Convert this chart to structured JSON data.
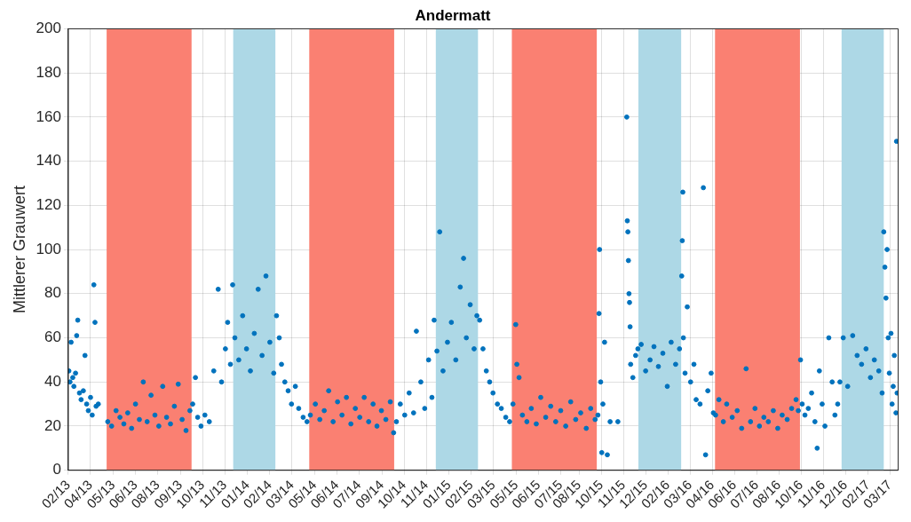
{
  "chart_data": {
    "type": "scatter",
    "title": "Andermatt",
    "ylabel": "Mittlerer Grauwert",
    "ylim": [
      0,
      200
    ],
    "yticks": [
      0,
      20,
      40,
      60,
      80,
      100,
      120,
      140,
      160,
      180,
      200
    ],
    "xlim": [
      "2013-02-21",
      "2017-03-27"
    ],
    "xticks": [
      {
        "value": "2013-02-21",
        "label": "02/13"
      },
      {
        "value": "2013-04-02",
        "label": "04/13"
      },
      {
        "value": "2013-05-13",
        "label": "05/13"
      },
      {
        "value": "2013-06-22",
        "label": "06/13"
      },
      {
        "value": "2013-08-01",
        "label": "08/13"
      },
      {
        "value": "2013-09-11",
        "label": "09/13"
      },
      {
        "value": "2013-10-21",
        "label": "10/13"
      },
      {
        "value": "2013-11-30",
        "label": "11/13"
      },
      {
        "value": "2014-01-10",
        "label": "01/14"
      },
      {
        "value": "2014-02-19",
        "label": "02/14"
      },
      {
        "value": "2014-03-31",
        "label": "03/14"
      },
      {
        "value": "2014-05-11",
        "label": "05/14"
      },
      {
        "value": "2014-06-20",
        "label": "06/14"
      },
      {
        "value": "2014-07-30",
        "label": "07/14"
      },
      {
        "value": "2014-09-09",
        "label": "09/14"
      },
      {
        "value": "2014-10-19",
        "label": "10/14"
      },
      {
        "value": "2014-11-28",
        "label": "11/14"
      },
      {
        "value": "2015-01-08",
        "label": "01/15"
      },
      {
        "value": "2015-02-17",
        "label": "02/15"
      },
      {
        "value": "2015-03-29",
        "label": "03/15"
      },
      {
        "value": "2015-05-09",
        "label": "05/15"
      },
      {
        "value": "2015-06-18",
        "label": "06/15"
      },
      {
        "value": "2015-07-28",
        "label": "07/15"
      },
      {
        "value": "2015-08-30",
        "label": "08/15"
      },
      {
        "value": "2015-10-09",
        "label": "10/15"
      },
      {
        "value": "2015-11-18",
        "label": "11/15"
      },
      {
        "value": "2015-12-28",
        "label": "12/15"
      },
      {
        "value": "2016-02-06",
        "label": "02/16"
      },
      {
        "value": "2016-03-17",
        "label": "03/16"
      },
      {
        "value": "2016-04-26",
        "label": "04/16"
      },
      {
        "value": "2016-06-05",
        "label": "06/16"
      },
      {
        "value": "2016-07-15",
        "label": "07/16"
      },
      {
        "value": "2016-08-24",
        "label": "08/16"
      },
      {
        "value": "2016-10-03",
        "label": "10/16"
      },
      {
        "value": "2016-11-12",
        "label": "11/16"
      },
      {
        "value": "2016-12-22",
        "label": "12/16"
      },
      {
        "value": "2017-02-01",
        "label": "02/17"
      },
      {
        "value": "2017-03-12",
        "label": "03/17"
      }
    ],
    "grid": true,
    "legend": false,
    "marker": "circle",
    "bands": [
      {
        "axis": "x",
        "from": "2013-05-01",
        "to": "2013-10-01",
        "color": "#fa8072"
      },
      {
        "axis": "x",
        "from": "2013-12-15",
        "to": "2014-03-01",
        "color": "#add8e6"
      },
      {
        "axis": "x",
        "from": "2014-05-01",
        "to": "2014-10-01",
        "color": "#fa8072"
      },
      {
        "axis": "x",
        "from": "2014-12-15",
        "to": "2015-03-01",
        "color": "#add8e6"
      },
      {
        "axis": "x",
        "from": "2015-05-01",
        "to": "2015-10-01",
        "color": "#fa8072"
      },
      {
        "axis": "x",
        "from": "2015-12-15",
        "to": "2016-03-01",
        "color": "#add8e6"
      },
      {
        "axis": "x",
        "from": "2016-05-01",
        "to": "2016-10-01",
        "color": "#fa8072"
      },
      {
        "axis": "x",
        "from": "2016-12-15",
        "to": "2017-03-01",
        "color": "#add8e6"
      }
    ],
    "series": [
      {
        "color": "#0072bd",
        "x": [
          "2013-02-22",
          "2013-02-24",
          "2013-02-26",
          "2013-03-01",
          "2013-03-03",
          "2013-03-06",
          "2013-03-08",
          "2013-03-10",
          "2013-03-13",
          "2013-03-16",
          "2013-03-20",
          "2013-03-23",
          "2013-03-26",
          "2013-03-29",
          "2013-04-02",
          "2013-04-05",
          "2013-04-08",
          "2013-04-10",
          "2013-04-12",
          "2013-04-16",
          "2013-05-03",
          "2013-05-10",
          "2013-05-18",
          "2013-05-25",
          "2013-06-01",
          "2013-06-08",
          "2013-06-15",
          "2013-06-22",
          "2013-06-29",
          "2013-07-06",
          "2013-07-13",
          "2013-07-20",
          "2013-07-27",
          "2013-08-03",
          "2013-08-10",
          "2013-08-17",
          "2013-08-24",
          "2013-08-31",
          "2013-09-07",
          "2013-09-14",
          "2013-09-21",
          "2013-09-28",
          "2013-10-03",
          "2013-10-08",
          "2013-10-12",
          "2013-10-18",
          "2013-10-25",
          "2013-11-02",
          "2013-11-10",
          "2013-11-18",
          "2013-11-24",
          "2013-12-01",
          "2013-12-05",
          "2013-12-10",
          "2013-12-14",
          "2013-12-18",
          "2013-12-25",
          "2014-01-01",
          "2014-01-08",
          "2014-01-15",
          "2014-01-22",
          "2014-01-29",
          "2014-02-05",
          "2014-02-12",
          "2014-02-19",
          "2014-02-26",
          "2014-03-03",
          "2014-03-08",
          "2014-03-12",
          "2014-03-18",
          "2014-03-24",
          "2014-03-30",
          "2014-04-06",
          "2014-04-12",
          "2014-04-20",
          "2014-04-27",
          "2014-05-03",
          "2014-05-12",
          "2014-05-20",
          "2014-05-28",
          "2014-06-05",
          "2014-06-13",
          "2014-06-21",
          "2014-06-29",
          "2014-07-07",
          "2014-07-15",
          "2014-07-23",
          "2014-07-31",
          "2014-08-08",
          "2014-08-16",
          "2014-08-24",
          "2014-08-31",
          "2014-09-08",
          "2014-09-16",
          "2014-09-24",
          "2014-09-30",
          "2014-10-05",
          "2014-10-12",
          "2014-10-20",
          "2014-10-28",
          "2014-11-05",
          "2014-11-10",
          "2014-11-18",
          "2014-11-25",
          "2014-12-02",
          "2014-12-08",
          "2014-12-12",
          "2014-12-17",
          "2014-12-22",
          "2014-12-28",
          "2015-01-05",
          "2015-01-12",
          "2015-01-20",
          "2015-01-28",
          "2015-02-03",
          "2015-02-08",
          "2015-02-15",
          "2015-02-22",
          "2015-02-27",
          "2015-03-04",
          "2015-03-10",
          "2015-03-16",
          "2015-03-22",
          "2015-03-28",
          "2015-04-05",
          "2015-04-12",
          "2015-04-20",
          "2015-04-27",
          "2015-05-03",
          "2015-05-08",
          "2015-05-10",
          "2015-05-14",
          "2015-05-20",
          "2015-05-28",
          "2015-06-05",
          "2015-06-14",
          "2015-06-22",
          "2015-07-01",
          "2015-07-10",
          "2015-07-19",
          "2015-07-28",
          "2015-08-06",
          "2015-08-15",
          "2015-08-24",
          "2015-09-02",
          "2015-09-12",
          "2015-09-20",
          "2015-09-28",
          "2015-10-03",
          "2015-10-05",
          "2015-10-06",
          "2015-10-08",
          "2015-10-10",
          "2015-10-12",
          "2015-10-15",
          "2015-10-20",
          "2015-10-25",
          "2015-11-08",
          "2015-11-24",
          "2015-11-25",
          "2015-11-26",
          "2015-11-27",
          "2015-11-28",
          "2015-11-29",
          "2015-11-30",
          "2015-12-01",
          "2015-12-05",
          "2015-12-10",
          "2015-12-14",
          "2015-12-20",
          "2015-12-28",
          "2016-01-05",
          "2016-01-12",
          "2016-01-20",
          "2016-01-28",
          "2016-02-05",
          "2016-02-12",
          "2016-02-20",
          "2016-02-27",
          "2016-03-02",
          "2016-03-03",
          "2016-03-04",
          "2016-03-05",
          "2016-03-08",
          "2016-03-12",
          "2016-03-18",
          "2016-03-24",
          "2016-03-28",
          "2016-04-04",
          "2016-04-10",
          "2016-04-14",
          "2016-04-18",
          "2016-04-24",
          "2016-04-28",
          "2016-05-02",
          "2016-05-08",
          "2016-05-16",
          "2016-05-22",
          "2016-06-01",
          "2016-06-10",
          "2016-06-18",
          "2016-06-26",
          "2016-07-04",
          "2016-07-12",
          "2016-07-20",
          "2016-07-28",
          "2016-08-05",
          "2016-08-14",
          "2016-08-22",
          "2016-08-30",
          "2016-09-08",
          "2016-09-16",
          "2016-09-24",
          "2016-09-28",
          "2016-10-02",
          "2016-10-05",
          "2016-10-10",
          "2016-10-16",
          "2016-10-22",
          "2016-10-28",
          "2016-11-01",
          "2016-11-05",
          "2016-11-10",
          "2016-11-15",
          "2016-11-22",
          "2016-11-28",
          "2016-12-03",
          "2016-12-08",
          "2016-12-12",
          "2016-12-18",
          "2016-12-26",
          "2017-01-04",
          "2017-01-12",
          "2017-01-20",
          "2017-01-28",
          "2017-02-05",
          "2017-02-12",
          "2017-02-20",
          "2017-02-26",
          "2017-03-01",
          "2017-03-03",
          "2017-03-05",
          "2017-03-07",
          "2017-03-09",
          "2017-03-11",
          "2017-03-14",
          "2017-03-16",
          "2017-03-18",
          "2017-03-20",
          "2017-03-24",
          "2017-03-23",
          "2017-03-25"
        ],
        "values": [
          45,
          40,
          58,
          42,
          38,
          44,
          61,
          68,
          35,
          32,
          36,
          52,
          30,
          27,
          33,
          25,
          84,
          67,
          29,
          30,
          22,
          20,
          27,
          24,
          21,
          26,
          19,
          30,
          23,
          40,
          22,
          34,
          25,
          20,
          38,
          24,
          21,
          29,
          39,
          23,
          18,
          27,
          30,
          42,
          24,
          20,
          25,
          22,
          45,
          82,
          40,
          55,
          67,
          48,
          84,
          60,
          50,
          70,
          55,
          45,
          62,
          82,
          52,
          88,
          58,
          44,
          70,
          60,
          48,
          40,
          36,
          30,
          38,
          28,
          24,
          22,
          25,
          30,
          23,
          27,
          36,
          22,
          31,
          25,
          33,
          21,
          28,
          24,
          33,
          22,
          30,
          20,
          27,
          23,
          31,
          17,
          22,
          30,
          25,
          35,
          26,
          63,
          40,
          28,
          50,
          33,
          68,
          54,
          108,
          45,
          58,
          67,
          50,
          83,
          96,
          60,
          75,
          55,
          70,
          68,
          55,
          45,
          40,
          35,
          30,
          28,
          24,
          22,
          30,
          66,
          48,
          42,
          25,
          22,
          28,
          21,
          33,
          24,
          29,
          22,
          27,
          20,
          31,
          23,
          26,
          19,
          28,
          23,
          25,
          71,
          100,
          40,
          8,
          30,
          58,
          7,
          22,
          22,
          160,
          113,
          108,
          95,
          80,
          76,
          65,
          48,
          42,
          52,
          55,
          57,
          45,
          50,
          56,
          47,
          53,
          38,
          58,
          48,
          55,
          88,
          104,
          126,
          60,
          44,
          74,
          40,
          48,
          32,
          30,
          128,
          7,
          36,
          44,
          26,
          25,
          32,
          22,
          30,
          24,
          27,
          19,
          46,
          22,
          28,
          20,
          24,
          22,
          27,
          19,
          25,
          23,
          28,
          32,
          27,
          50,
          30,
          25,
          28,
          35,
          22,
          10,
          45,
          30,
          20,
          60,
          40,
          25,
          30,
          40,
          60,
          38,
          61,
          52,
          48,
          55,
          42,
          50,
          45,
          35,
          108,
          92,
          78,
          100,
          60,
          44,
          62,
          30,
          38,
          52,
          149,
          26,
          35
        ]
      }
    ]
  }
}
